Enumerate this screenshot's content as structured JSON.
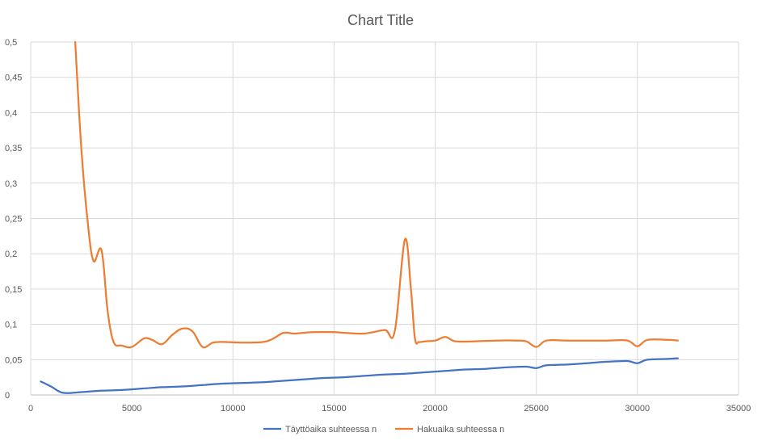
{
  "chart_data": {
    "type": "line",
    "title": "Chart Title",
    "xlabel": "",
    "ylabel": "",
    "xlim": [
      0,
      35000
    ],
    "ylim": [
      0,
      0.5
    ],
    "x_ticks": [
      "0",
      "5000",
      "10000",
      "15000",
      "20000",
      "25000",
      "30000",
      "35000"
    ],
    "y_ticks": [
      "0",
      "0,05",
      "0,1",
      "0,15",
      "0,2",
      "0,25",
      "0,3",
      "0,35",
      "0,4",
      "0,45",
      "0,5"
    ],
    "grid": true,
    "legend_position": "bottom",
    "series": [
      {
        "name": "Täyttöaika suhteessa n",
        "color": "#4472c4",
        "x": [
          500,
          1000,
          1600,
          2500,
          3500,
          4500,
          5500,
          6500,
          7500,
          8500,
          9500,
          10500,
          11500,
          12500,
          13500,
          14500,
          15500,
          16500,
          17500,
          18500,
          19500,
          20500,
          21500,
          22500,
          23500,
          24500,
          25000,
          25500,
          26500,
          27500,
          28500,
          29500,
          30000,
          30500,
          31500,
          32000
        ],
        "y": [
          0.019,
          0.012,
          0.003,
          0.004,
          0.006,
          0.007,
          0.009,
          0.011,
          0.012,
          0.014,
          0.016,
          0.017,
          0.018,
          0.02,
          0.022,
          0.024,
          0.025,
          0.027,
          0.029,
          0.03,
          0.032,
          0.034,
          0.036,
          0.037,
          0.039,
          0.04,
          0.038,
          0.042,
          0.043,
          0.045,
          0.047,
          0.048,
          0.045,
          0.05,
          0.051,
          0.052
        ]
      },
      {
        "name": "Hakuaika suhteessa n",
        "color": "#ed7d31",
        "x": [
          2200,
          2500,
          2800,
          3100,
          3500,
          3800,
          4100,
          4500,
          5000,
          5600,
          6000,
          6500,
          7000,
          7500,
          8000,
          8500,
          9000,
          9500,
          10500,
          11500,
          12000,
          12500,
          13000,
          13500,
          14000,
          15000,
          15500,
          16500,
          17500,
          18000,
          18500,
          18800,
          19000,
          19200,
          19500,
          20000,
          20500,
          21000,
          22000,
          23000,
          24000,
          24500,
          25000,
          25500,
          26500,
          27500,
          28500,
          29500,
          30000,
          30500,
          31500,
          32000
        ],
        "y": [
          0.5,
          0.35,
          0.25,
          0.19,
          0.205,
          0.12,
          0.075,
          0.07,
          0.068,
          0.08,
          0.078,
          0.072,
          0.085,
          0.094,
          0.09,
          0.068,
          0.074,
          0.075,
          0.074,
          0.075,
          0.08,
          0.088,
          0.087,
          0.088,
          0.089,
          0.089,
          0.088,
          0.087,
          0.092,
          0.09,
          0.22,
          0.15,
          0.08,
          0.075,
          0.076,
          0.077,
          0.082,
          0.076,
          0.076,
          0.077,
          0.077,
          0.076,
          0.068,
          0.077,
          0.077,
          0.077,
          0.077,
          0.077,
          0.069,
          0.078,
          0.078,
          0.077
        ]
      }
    ]
  }
}
